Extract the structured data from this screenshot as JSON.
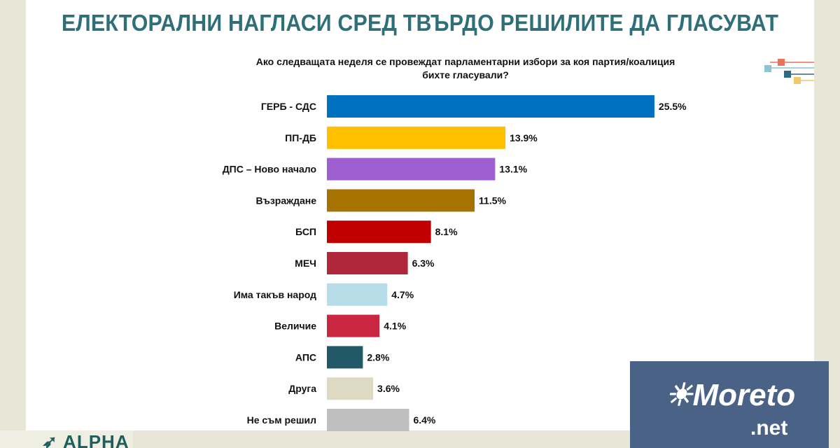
{
  "title": "ЕЛЕКТОРАЛНИ НАГЛАСИ СРЕД ТВЪРДО РЕШИЛИТЕ ДА ГЛАСУВАТ",
  "logos": {
    "alpha": "ALPHA",
    "moreto": "Moreto",
    "moreto_net": ".net"
  },
  "chart_data": {
    "type": "bar",
    "orientation": "horizontal",
    "title": "",
    "subtitle_lines": [
      "Ако следващата неделя се провеждат парламентарни избори за коя партия/коалиция",
      "бихте гласували?"
    ],
    "categories": [
      "ГЕРБ - СДС",
      "ПП-ДБ",
      "ДПС – Ново начало",
      "Възраждане",
      "БСП",
      "МЕЧ",
      "Има такъв народ",
      "Величие",
      "АПС",
      "Друга",
      "Не съм решил"
    ],
    "values": [
      25.5,
      13.9,
      13.1,
      11.5,
      8.1,
      6.3,
      4.7,
      4.1,
      2.8,
      3.6,
      6.4
    ],
    "data_labels": [
      "25.5%",
      "13.9%",
      "13.1%",
      "11.5%",
      "8.1%",
      "6.3%",
      "4.7%",
      "4.1%",
      "2.8%",
      "3.6%",
      "6.4%"
    ],
    "colors": [
      "#0070c0",
      "#ffc000",
      "#9e5fd0",
      "#a67200",
      "#c00000",
      "#b0263a",
      "#b7dde8",
      "#c9273f",
      "#215968",
      "#ddd9c3",
      "#bfbfbf"
    ],
    "unit": "%",
    "grid": false
  }
}
